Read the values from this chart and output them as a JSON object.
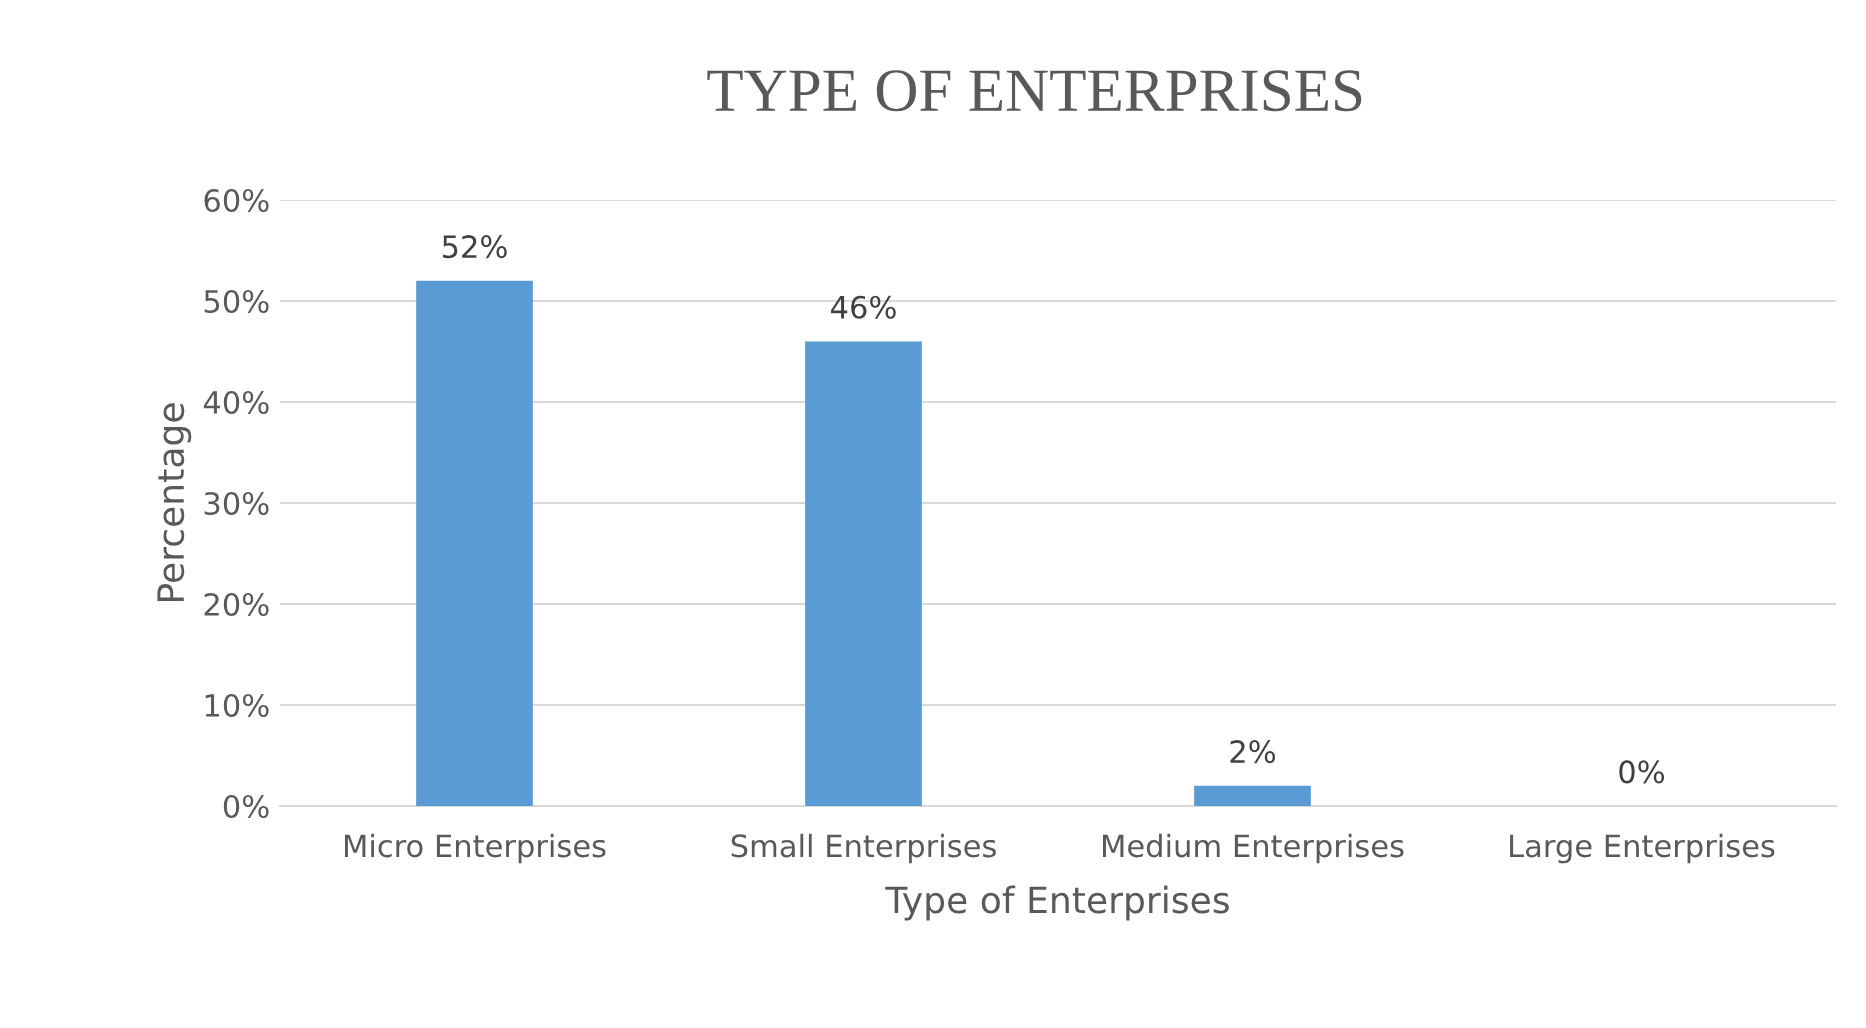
{
  "chart_data": {
    "type": "bar",
    "title": "TYPE OF ENTERPRISES",
    "xlabel": "Type of Enterprises",
    "ylabel": "Percentage",
    "categories": [
      "Micro Enterprises",
      "Small Enterprises",
      "Medium Enterprises",
      "Large Enterprises"
    ],
    "values": [
      52,
      46,
      2,
      0
    ],
    "color": "#5b9bd5",
    "value_labels": [
      "52%",
      "46%",
      "2%",
      "0%"
    ],
    "ylim": [
      0,
      60
    ],
    "yticks": [
      {
        "value": 0,
        "label": "0%"
      },
      {
        "value": 10,
        "label": "10%"
      },
      {
        "value": 20,
        "label": "20%"
      },
      {
        "value": 30,
        "label": "30%"
      },
      {
        "value": 40,
        "label": "40%"
      },
      {
        "value": 50,
        "label": "50%"
      },
      {
        "value": 60,
        "label": "60%"
      }
    ],
    "grid": "y"
  }
}
